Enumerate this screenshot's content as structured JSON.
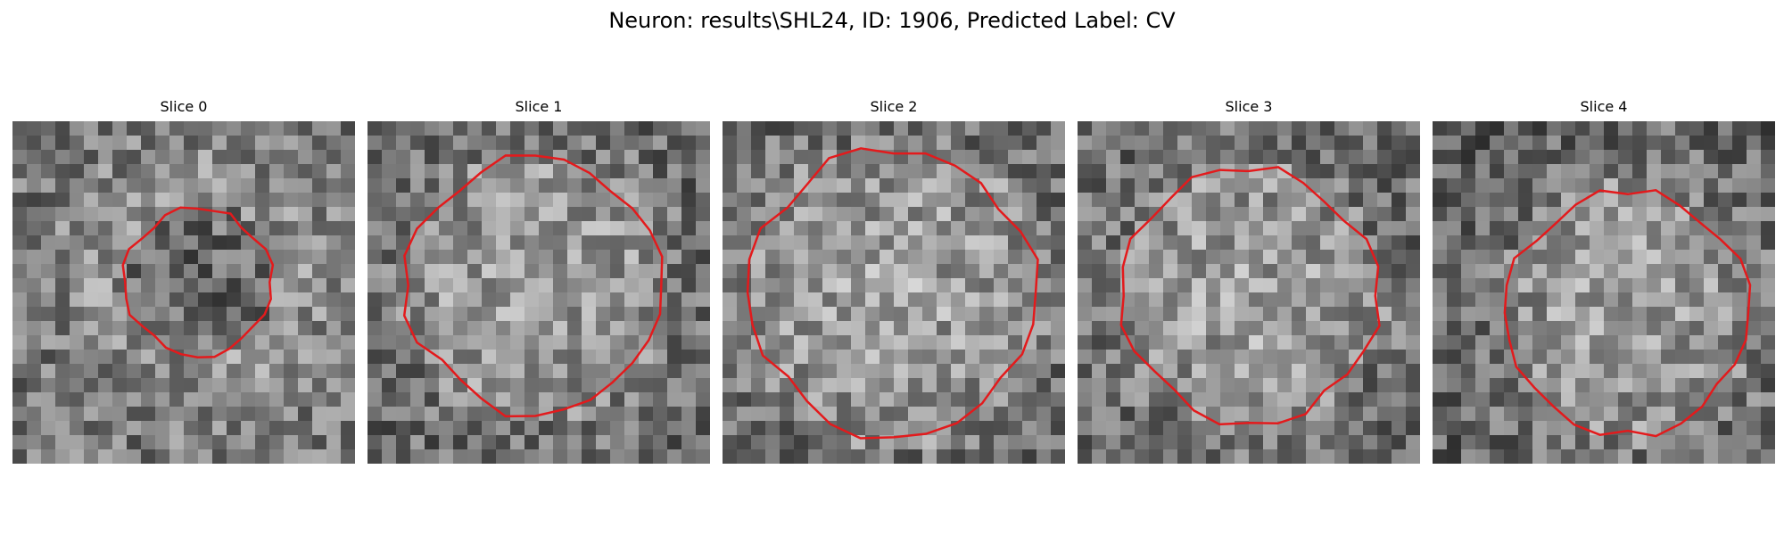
{
  "figure": {
    "title": "Neuron: results\\SHL24, ID: 1906, Predicted Label: CV"
  },
  "contour_color": "#e31a1c",
  "slices": [
    {
      "label": "Slice 0",
      "seed": 11,
      "bright_center": false,
      "contour_radius": 0.23,
      "contour_cx": 0.54,
      "contour_cy": 0.47
    },
    {
      "label": "Slice 1",
      "seed": 23,
      "bright_center": true,
      "contour_radius": 0.4,
      "contour_cx": 0.49,
      "contour_cy": 0.48
    },
    {
      "label": "Slice 2",
      "seed": 37,
      "bright_center": true,
      "contour_radius": 0.45,
      "contour_cx": 0.5,
      "contour_cy": 0.5
    },
    {
      "label": "Slice 3",
      "seed": 51,
      "bright_center": true,
      "contour_radius": 0.4,
      "contour_cx": 0.5,
      "contour_cy": 0.51
    },
    {
      "label": "Slice 4",
      "seed": 67,
      "bright_center": true,
      "contour_radius": 0.38,
      "contour_cx": 0.57,
      "contour_cy": 0.56
    }
  ]
}
